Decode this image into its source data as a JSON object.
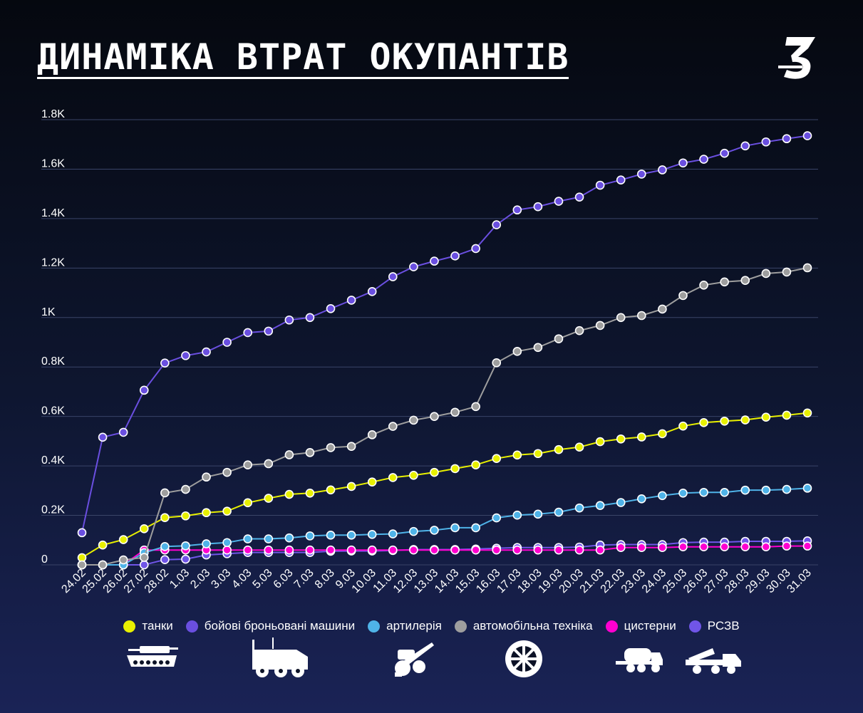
{
  "title": "ДИНАМІКА ВТРАТ ОКУПАНТІВ",
  "logo_glyph": "З",
  "chart_data": {
    "type": "line",
    "title": "ДИНАМІКА ВТРАТ ОКУПАНТІВ",
    "xlabel": "",
    "ylabel": "",
    "ylim": [
      0,
      1800
    ],
    "grid": true,
    "legend_position": "bottom",
    "y_ticks": [
      {
        "value": 0,
        "label": "0"
      },
      {
        "value": 200,
        "label": "0.2K"
      },
      {
        "value": 400,
        "label": "0.4K"
      },
      {
        "value": 600,
        "label": "0.6K"
      },
      {
        "value": 800,
        "label": "0.8K"
      },
      {
        "value": 1000,
        "label": "1K"
      },
      {
        "value": 1200,
        "label": "1.2K"
      },
      {
        "value": 1400,
        "label": "1.4K"
      },
      {
        "value": 1600,
        "label": "1.6K"
      },
      {
        "value": 1800,
        "label": "1.8K"
      }
    ],
    "categories": [
      "24.02",
      "25.02",
      "26.02",
      "27.02",
      "28.02",
      "1.03",
      "2.03",
      "3.03",
      "4.03",
      "5.03",
      "6.03",
      "7.03",
      "8.03",
      "9.03",
      "10.03",
      "11.03",
      "12.03",
      "13.03",
      "14.03",
      "15.03",
      "16.03",
      "17.03",
      "18.03",
      "19.03",
      "20.03",
      "21.03",
      "22.03",
      "23.03",
      "24.03",
      "25.03",
      "26.03",
      "27.03",
      "28.03",
      "29.03",
      "30.03",
      "31.03"
    ],
    "series": [
      {
        "name": "бойові броньовані машини",
        "color": "#6a4fe0",
        "values": [
          130,
          516,
          536,
          706,
          816,
          846,
          861,
          900,
          939,
          945,
          990,
          1000,
          1036,
          1070,
          1105,
          1165,
          1205,
          1228,
          1249,
          1279,
          1375,
          1435,
          1448,
          1470,
          1487,
          1535,
          1556,
          1580,
          1597,
          1625,
          1640,
          1664,
          1694,
          1710,
          1723,
          1735
        ]
      },
      {
        "name": "автомобільна техніка",
        "color": "#9e9e9e",
        "values": [
          0,
          0,
          20,
          30,
          291,
          305,
          355,
          374,
          404,
          409,
          445,
          454,
          474,
          479,
          526,
          560,
          585,
          600,
          617,
          640,
          817,
          863,
          879,
          914,
          947,
          968,
          1000,
          1008,
          1034,
          1089,
          1131,
          1144,
          1150,
          1178,
          1184,
          1201
        ]
      },
      {
        "name": "танки",
        "color": "#e8f000",
        "values": [
          29,
          80,
          102,
          146,
          191,
          198,
          211,
          217,
          251,
          269,
          285,
          290,
          303,
          317,
          335,
          353,
          362,
          374,
          389,
          404,
          430,
          444,
          450,
          466,
          476,
          498,
          509,
          517,
          530,
          561,
          575,
          581,
          586,
          597,
          605,
          614
        ]
      },
      {
        "name": "артилерія",
        "color": "#4fb3e8",
        "values": [
          0,
          0,
          0,
          49,
          74,
          77,
          85,
          90,
          105,
          105,
          109,
          117,
          120,
          120,
          123,
          125,
          135,
          140,
          150,
          150,
          190,
          201,
          205,
          213,
          230,
          240,
          252,
          267,
          280,
          290,
          293,
          293,
          302,
          302,
          305,
          310
        ]
      },
      {
        "name": "цистерни",
        "color": "#ff00d0",
        "values": [
          0,
          0,
          0,
          60,
          60,
          60,
          60,
          60,
          60,
          60,
          60,
          60,
          60,
          60,
          60,
          60,
          60,
          60,
          60,
          60,
          60,
          60,
          60,
          60,
          60,
          60,
          70,
          70,
          70,
          73,
          73,
          73,
          73,
          73,
          76,
          76
        ]
      },
      {
        "name": "РСЗВ",
        "color": "#7055e8",
        "values": [
          0,
          0,
          0,
          0,
          21,
          23,
          40,
          45,
          50,
          50,
          50,
          50,
          55,
          56,
          56,
          58,
          62,
          62,
          62,
          64,
          67,
          70,
          70,
          70,
          72,
          80,
          82,
          82,
          82,
          90,
          92,
          92,
          95,
          95,
          95,
          97
        ]
      }
    ]
  },
  "legend": [
    {
      "label": "танки",
      "color": "#e8f000"
    },
    {
      "label": "бойові броньовані машини",
      "color": "#6a4fe0"
    },
    {
      "label": "артилерія",
      "color": "#4fb3e8"
    },
    {
      "label": "автомобільна техніка",
      "color": "#9e9e9e"
    },
    {
      "label": "цистерни",
      "color": "#ff00d0"
    },
    {
      "label": "РСЗВ",
      "color": "#7055e8"
    }
  ],
  "icons": [
    "tank-icon",
    "armored-vehicle-icon",
    "artillery-icon",
    "wheel-icon",
    "tanker-truck-icon",
    "mlrs-icon"
  ]
}
